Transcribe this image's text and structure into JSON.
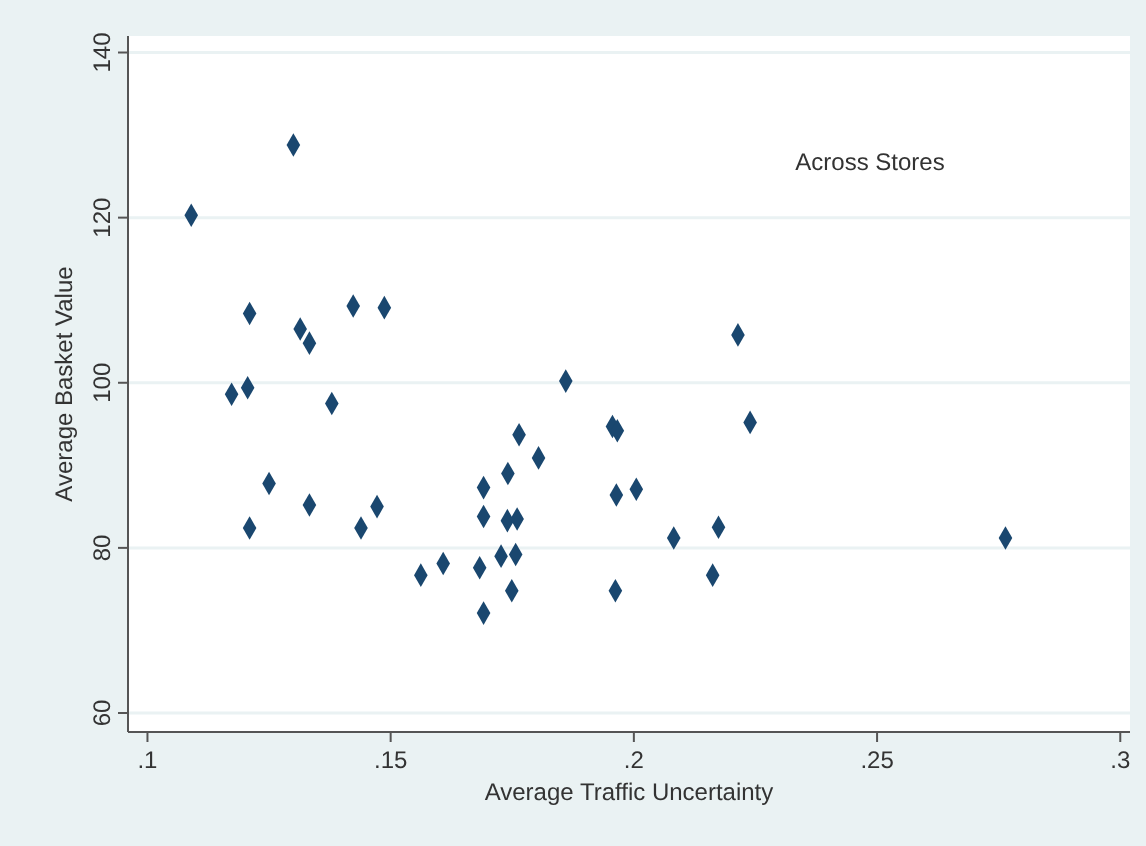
{
  "chart_data": {
    "type": "scatter",
    "xlabel": "Average Traffic Uncertainty",
    "ylabel": "Average Basket Value",
    "annotations": [
      "Across Stores"
    ],
    "marker": "diamond",
    "grid": "y",
    "xlim": [
      0.096,
      0.302
    ],
    "xticks": [
      {
        "value": 0.1,
        "label": ".1"
      },
      {
        "value": 0.15,
        "label": ".15"
      },
      {
        "value": 0.2,
        "label": ".2"
      },
      {
        "value": 0.25,
        "label": ".25"
      },
      {
        "value": 0.3,
        "label": ".3"
      }
    ],
    "ylim": [
      57.7,
      142
    ],
    "yticks": [
      60,
      80,
      100,
      120,
      140
    ],
    "series": [
      {
        "color": "#1a476f",
        "x": [
          0.109,
          0.13,
          0.121,
          0.1314,
          0.1333,
          0.1423,
          0.1487,
          0.186,
          0.1173,
          0.1206,
          0.1379,
          0.125,
          0.1333,
          0.121,
          0.1439,
          0.1472,
          0.1562,
          0.1608,
          0.1683,
          0.1691,
          0.1691,
          0.1691,
          0.1727,
          0.1741,
          0.174,
          0.176,
          0.1757,
          0.1749,
          0.1764,
          0.1804,
          0.1956,
          0.1966,
          0.1964,
          0.1962,
          0.2214,
          0.2239,
          0.2005,
          0.2082,
          0.2174,
          0.2162,
          0.2764
        ],
        "values": [
          120.3,
          128.8,
          108.4,
          106.5,
          104.8,
          109.3,
          109.1,
          100.2,
          98.6,
          99.4,
          97.5,
          87.8,
          85.2,
          82.4,
          82.4,
          85.0,
          76.7,
          78.1,
          77.6,
          72.1,
          87.3,
          83.8,
          79.0,
          89.0,
          83.3,
          83.5,
          79.2,
          74.8,
          93.7,
          90.9,
          94.7,
          94.2,
          86.4,
          74.8,
          105.8,
          95.2,
          87.1,
          81.2,
          82.5,
          76.7,
          81.2
        ]
      }
    ]
  }
}
